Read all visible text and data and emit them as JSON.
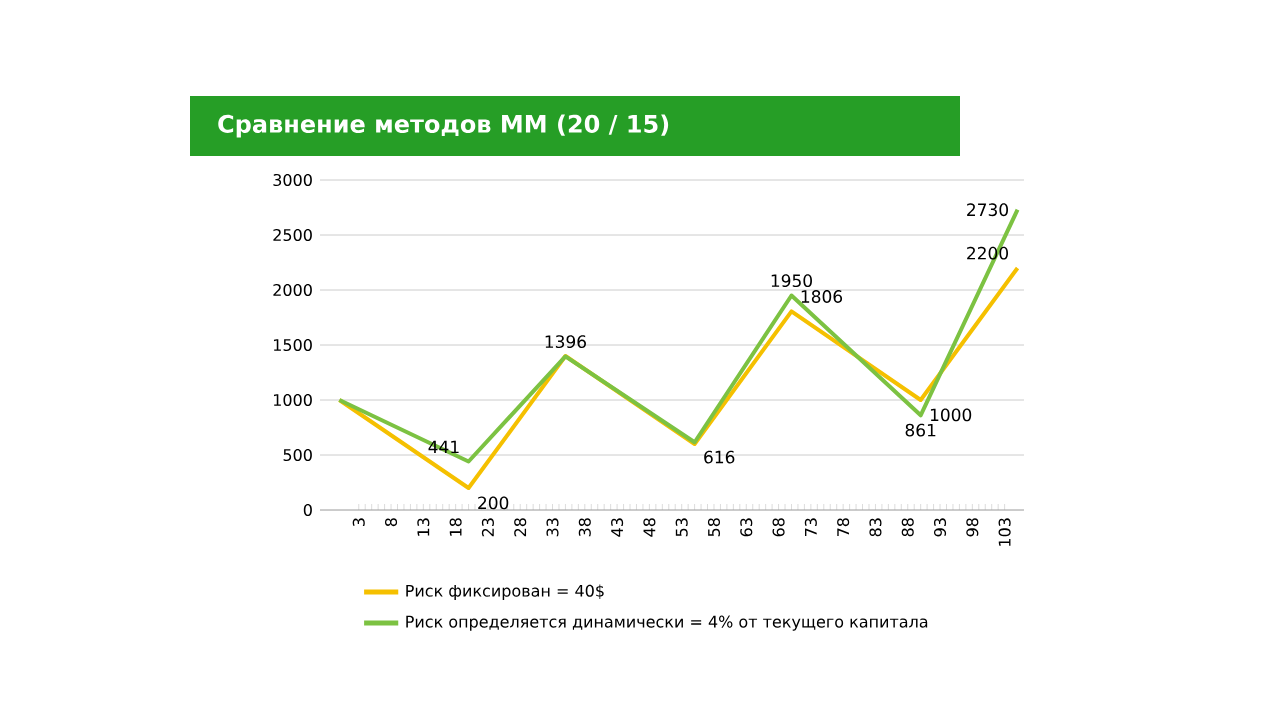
{
  "chart_data": {
    "type": "line",
    "title": "Сравнение методов ММ (20 / 15)",
    "x": [
      0,
      20,
      35,
      55,
      70,
      90,
      105
    ],
    "series": [
      {
        "name": "Риск фиксирован = 40$",
        "color": "#f5c000",
        "values": [
          1000,
          200,
          1400,
          600,
          1806,
          1000,
          2200
        ]
      },
      {
        "name": "Риск определяется динамически = 4% от текущего капитала",
        "color": "#7cc242",
        "values": [
          1000,
          441,
          1396,
          616,
          1950,
          861,
          2730
        ]
      }
    ],
    "xlim": [
      -3,
      106
    ],
    "xticks": [
      3,
      8,
      13,
      18,
      23,
      28,
      33,
      38,
      43,
      48,
      53,
      58,
      63,
      68,
      73,
      78,
      83,
      88,
      93,
      98,
      103
    ],
    "ylim": [
      0,
      3000
    ],
    "yticks": [
      0,
      500,
      1000,
      1500,
      2000,
      2500,
      3000
    ],
    "grid": "y",
    "legend": "bottom",
    "marker": "none",
    "line_style": "solid",
    "annotations": [
      {
        "text": "441",
        "x": 20,
        "y": 441
      },
      {
        "text": "200",
        "x": 20,
        "y": 200
      },
      {
        "text": "1396",
        "x": 35,
        "y": 1396
      },
      {
        "text": "616",
        "x": 55,
        "y": 616
      },
      {
        "text": "1950",
        "x": 70,
        "y": 1950
      },
      {
        "text": "1806",
        "x": 70,
        "y": 1806
      },
      {
        "text": "861",
        "x": 90,
        "y": 861
      },
      {
        "text": "1000",
        "x": 90,
        "y": 1000
      },
      {
        "text": "2200",
        "x": 105,
        "y": 2200
      },
      {
        "text": "2730",
        "x": 105,
        "y": 2730
      }
    ]
  }
}
